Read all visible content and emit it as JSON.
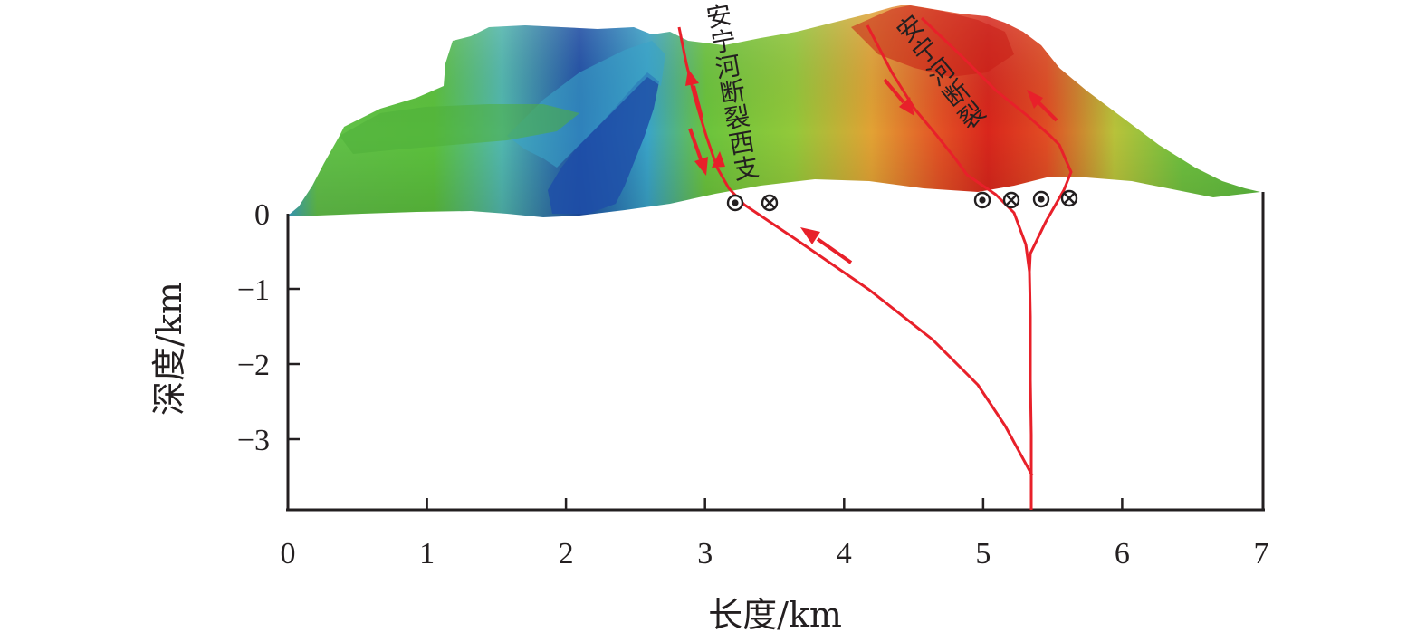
{
  "axes": {
    "x_title": "长度/km",
    "y_title": "深度/km",
    "x_ticks": [
      "0",
      "1",
      "2",
      "3",
      "4",
      "5",
      "6",
      "7"
    ],
    "y_ticks": [
      "0",
      "−1",
      "−2",
      "−3"
    ],
    "x_range_km": [
      0,
      7
    ],
    "y_range_km": [
      -3.9,
      0
    ]
  },
  "labels": {
    "west_branch": "安宁河断裂西支",
    "main_fault": "安宁河断裂"
  },
  "west_branch_chars": [
    "安",
    "宁",
    "河",
    "断",
    "裂",
    "西",
    "支"
  ],
  "main_fault_chars": [
    "安",
    "宁",
    "河",
    "断",
    "裂"
  ],
  "strike_slip_symbols": [
    {
      "type": "out-of-page",
      "x_km": 3.2
    },
    {
      "type": "into-page",
      "x_km": 3.45
    },
    {
      "type": "out-of-page",
      "x_km": 4.98
    },
    {
      "type": "into-page",
      "x_km": 5.19
    },
    {
      "type": "out-of-page",
      "x_km": 5.41
    },
    {
      "type": "into-page",
      "x_km": 5.63
    }
  ],
  "colors": {
    "fault_line": "#e8202a",
    "axis": "#231f20",
    "terrain_low": "#1f4fa8",
    "terrain_mid": "#5cc23d",
    "terrain_high": "#d9261c"
  }
}
